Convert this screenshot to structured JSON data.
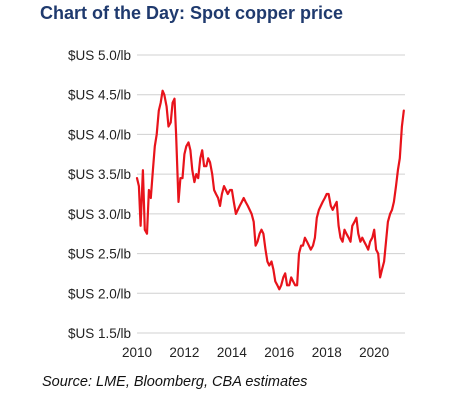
{
  "title": "Chart of the Day: Spot copper price",
  "source": "Source:  LME, Bloomberg, CBA estimates",
  "colors": {
    "line": "#e8131b",
    "grid": "#d0d0d0",
    "title": "#1f3a6e"
  },
  "chart_data": {
    "type": "line",
    "title": "Chart of the Day: Spot copper price",
    "xlabel": "",
    "ylabel": "",
    "xlim": [
      2010,
      2021.3
    ],
    "ylim": [
      1.5,
      5.0
    ],
    "grid": "horizontal",
    "legend": "none",
    "y_ticks": [
      {
        "value": 1.5,
        "label": "$US 1.5/lb"
      },
      {
        "value": 2.0,
        "label": "$US 2.0/lb"
      },
      {
        "value": 2.5,
        "label": "$US 2.5/lb"
      },
      {
        "value": 3.0,
        "label": "$US 3.0/lb"
      },
      {
        "value": 3.5,
        "label": "$US 3.5/lb"
      },
      {
        "value": 4.0,
        "label": "$US 4.0/lb"
      },
      {
        "value": 4.5,
        "label": "$US 4.5/lb"
      },
      {
        "value": 5.0,
        "label": "$US 5.0/lb"
      }
    ],
    "x_ticks": [
      {
        "value": 2010,
        "label": "2010"
      },
      {
        "value": 2012,
        "label": "2012"
      },
      {
        "value": 2014,
        "label": "2014"
      },
      {
        "value": 2016,
        "label": "2016"
      },
      {
        "value": 2018,
        "label": "2018"
      },
      {
        "value": 2020,
        "label": "2020"
      }
    ],
    "series": [
      {
        "x": [
          2010.0,
          2010.08,
          2010.15,
          2010.25,
          2010.33,
          2010.42,
          2010.5,
          2010.58,
          2010.67,
          2010.75,
          2010.83,
          2010.92,
          2011.0,
          2011.08,
          2011.15,
          2011.25,
          2011.33,
          2011.42,
          2011.5,
          2011.58,
          2011.65,
          2011.75,
          2011.83,
          2011.92,
          2012.0,
          2012.08,
          2012.17,
          2012.25,
          2012.33,
          2012.42,
          2012.5,
          2012.58,
          2012.67,
          2012.75,
          2012.83,
          2012.92,
          2013.0,
          2013.08,
          2013.17,
          2013.25,
          2013.33,
          2013.42,
          2013.5,
          2013.58,
          2013.67,
          2013.75,
          2013.83,
          2013.92,
          2014.0,
          2014.08,
          2014.17,
          2014.25,
          2014.33,
          2014.42,
          2014.5,
          2014.58,
          2014.67,
          2014.75,
          2014.83,
          2014.92,
          2015.0,
          2015.08,
          2015.17,
          2015.25,
          2015.33,
          2015.42,
          2015.5,
          2015.58,
          2015.67,
          2015.75,
          2015.83,
          2015.92,
          2016.0,
          2016.08,
          2016.17,
          2016.25,
          2016.33,
          2016.42,
          2016.5,
          2016.58,
          2016.67,
          2016.75,
          2016.83,
          2016.92,
          2017.0,
          2017.08,
          2017.17,
          2017.25,
          2017.33,
          2017.42,
          2017.5,
          2017.58,
          2017.67,
          2017.75,
          2017.83,
          2017.92,
          2018.0,
          2018.08,
          2018.17,
          2018.25,
          2018.33,
          2018.42,
          2018.5,
          2018.58,
          2018.67,
          2018.75,
          2018.83,
          2018.92,
          2019.0,
          2019.08,
          2019.17,
          2019.25,
          2019.33,
          2019.42,
          2019.5,
          2019.58,
          2019.67,
          2019.75,
          2019.83,
          2019.92,
          2020.0,
          2020.08,
          2020.17,
          2020.25,
          2020.33,
          2020.42,
          2020.5,
          2020.58,
          2020.67,
          2020.75,
          2020.83,
          2020.92,
          2021.0,
          2021.08,
          2021.17,
          2021.25
        ],
        "values": [
          3.45,
          3.35,
          2.85,
          3.55,
          2.8,
          2.75,
          3.3,
          3.2,
          3.55,
          3.85,
          4.0,
          4.3,
          4.4,
          4.55,
          4.5,
          4.35,
          4.1,
          4.15,
          4.4,
          4.45,
          4.0,
          3.15,
          3.45,
          3.45,
          3.75,
          3.85,
          3.9,
          3.8,
          3.55,
          3.4,
          3.5,
          3.45,
          3.7,
          3.8,
          3.6,
          3.6,
          3.7,
          3.65,
          3.5,
          3.3,
          3.25,
          3.2,
          3.1,
          3.25,
          3.35,
          3.3,
          3.25,
          3.3,
          3.3,
          3.15,
          3.0,
          3.05,
          3.1,
          3.15,
          3.2,
          3.15,
          3.1,
          3.05,
          3.0,
          2.9,
          2.6,
          2.65,
          2.75,
          2.8,
          2.75,
          2.55,
          2.4,
          2.35,
          2.4,
          2.3,
          2.15,
          2.1,
          2.05,
          2.1,
          2.2,
          2.25,
          2.1,
          2.1,
          2.2,
          2.15,
          2.1,
          2.1,
          2.5,
          2.6,
          2.6,
          2.7,
          2.65,
          2.6,
          2.55,
          2.6,
          2.7,
          2.95,
          3.05,
          3.1,
          3.15,
          3.2,
          3.25,
          3.25,
          3.1,
          3.05,
          3.1,
          3.15,
          2.85,
          2.7,
          2.65,
          2.8,
          2.75,
          2.7,
          2.65,
          2.85,
          2.9,
          2.95,
          2.75,
          2.65,
          2.7,
          2.65,
          2.6,
          2.55,
          2.65,
          2.7,
          2.8,
          2.55,
          2.5,
          2.2,
          2.3,
          2.4,
          2.65,
          2.9,
          3.0,
          3.05,
          3.15,
          3.35,
          3.55,
          3.7,
          4.1,
          4.3
        ]
      }
    ]
  }
}
